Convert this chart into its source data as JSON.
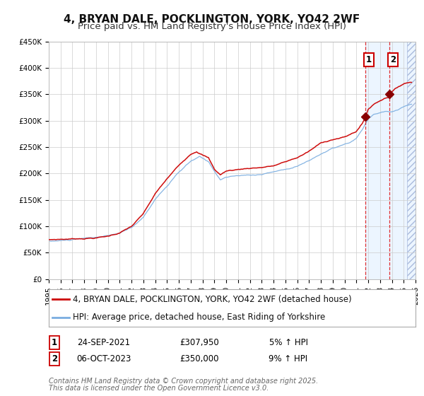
{
  "title": "4, BRYAN DALE, POCKLINGTON, YORK, YO42 2WF",
  "subtitle": "Price paid vs. HM Land Registry's House Price Index (HPI)",
  "legend_property": "4, BRYAN DALE, POCKLINGTON, YORK, YO42 2WF (detached house)",
  "legend_hpi": "HPI: Average price, detached house, East Riding of Yorkshire",
  "footer_line1": "Contains HM Land Registry data © Crown copyright and database right 2025.",
  "footer_line2": "This data is licensed under the Open Government Licence v3.0.",
  "xlim_start": 1995,
  "xlim_end": 2026,
  "ylim_min": 0,
  "ylim_max": 450000,
  "yticks": [
    0,
    50000,
    100000,
    150000,
    200000,
    250000,
    300000,
    350000,
    400000,
    450000
  ],
  "ytick_labels": [
    "£0",
    "£50K",
    "£100K",
    "£150K",
    "£200K",
    "£250K",
    "£300K",
    "£350K",
    "£400K",
    "£450K"
  ],
  "property_color": "#cc0000",
  "hpi_color": "#7aade0",
  "marker_color": "#880000",
  "sale1_x": 2021.73,
  "sale1_price": 307950,
  "sale1_label": "1",
  "sale1_date": "24-SEP-2021",
  "sale1_pct": "5% ↑ HPI",
  "sale2_x": 2023.77,
  "sale2_price": 350000,
  "sale2_label": "2",
  "sale2_date": "06-OCT-2023",
  "sale2_pct": "9% ↑ HPI",
  "shade_start": 2021.73,
  "shade_end": 2026.0,
  "hatch_start": 2025.3,
  "hatch_end": 2026.0,
  "background_color": "#ffffff",
  "grid_color": "#cccccc",
  "title_fontsize": 11,
  "subtitle_fontsize": 9.5,
  "tick_fontsize": 7.5,
  "legend_fontsize": 8.5,
  "table_fontsize": 8.5,
  "footer_fontsize": 7
}
